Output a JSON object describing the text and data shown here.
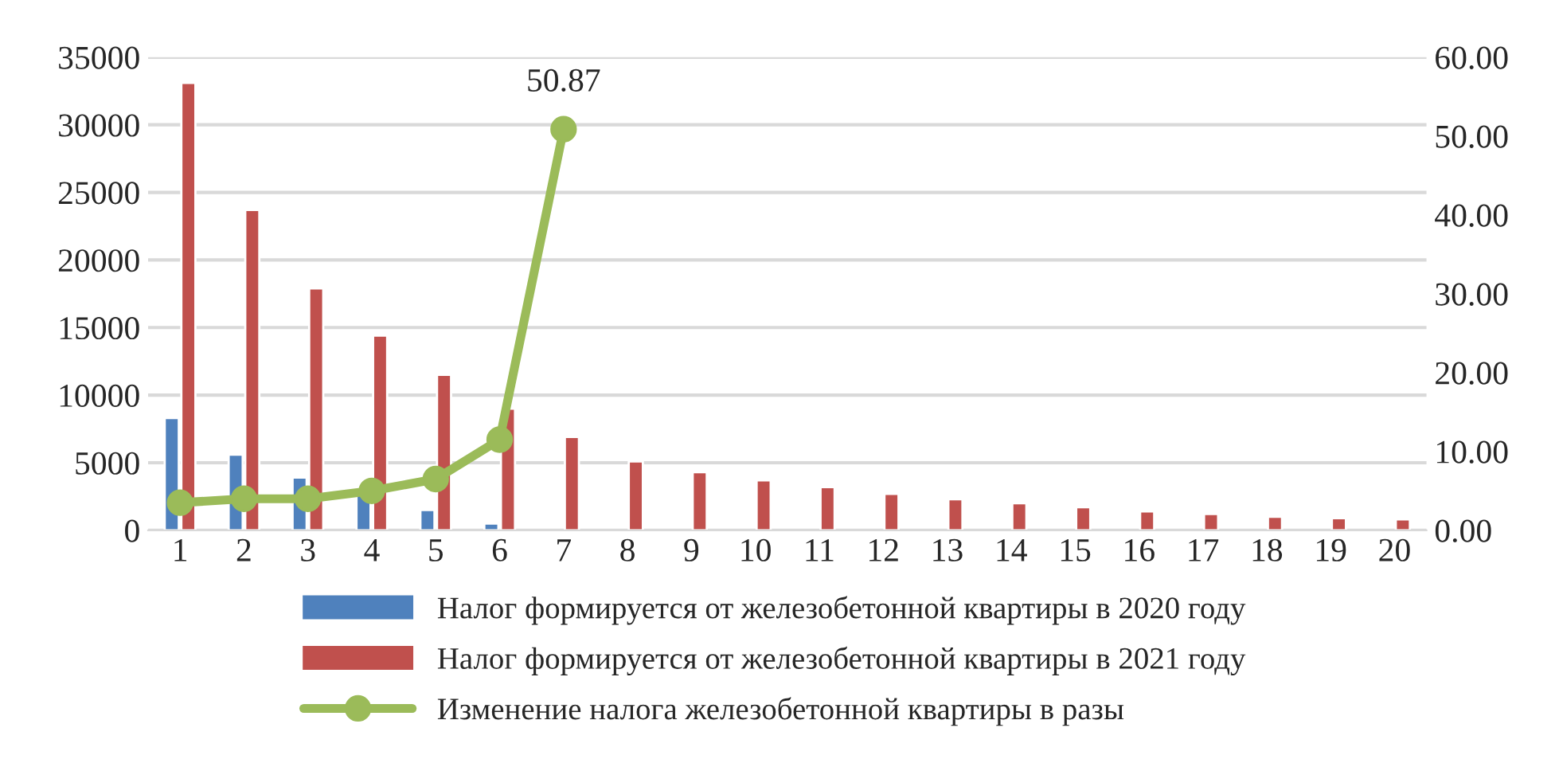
{
  "chart_data": {
    "type": "bar",
    "categories": [
      "1",
      "2",
      "3",
      "4",
      "5",
      "6",
      "7",
      "8",
      "9",
      "10",
      "11",
      "12",
      "13",
      "14",
      "15",
      "16",
      "17",
      "18",
      "19",
      "20"
    ],
    "series": [
      {
        "name": "Налог формируется от железобетонной квартиры в 2020 году",
        "color": "#4f81bd",
        "values": [
          8300,
          5600,
          3900,
          2800,
          1500,
          500,
          null,
          null,
          null,
          null,
          null,
          null,
          null,
          null,
          null,
          null,
          null,
          null,
          null,
          null
        ]
      },
      {
        "name": "Налог формируется от железобетонной квартиры в 2021 году",
        "color": "#c0504d",
        "values": [
          33100,
          23700,
          17900,
          14400,
          11500,
          9000,
          6900,
          5100,
          4300,
          3700,
          3200,
          2700,
          2300,
          2000,
          1700,
          1400,
          1200,
          1000,
          900,
          800
        ]
      },
      {
        "name": "Изменение налога железобетонной квартиры в разы",
        "color": "#9bbb59",
        "type": "line",
        "axis": "y2",
        "marker": "circle",
        "values": [
          3.5,
          4,
          4,
          5,
          6.5,
          11.5,
          50.87,
          null,
          null,
          null,
          null,
          null,
          null,
          null,
          null,
          null,
          null,
          null,
          null,
          null
        ],
        "value_labels": [
          null,
          null,
          null,
          null,
          null,
          null,
          "50.87",
          null,
          null,
          null,
          null,
          null,
          null,
          null,
          null,
          null,
          null,
          null,
          null,
          null
        ]
      }
    ],
    "ylim": [
      0,
      35000
    ],
    "yticks": [
      0,
      5000,
      10000,
      15000,
      20000,
      25000,
      30000,
      35000
    ],
    "y2lim": [
      0,
      60
    ],
    "y2ticks": [
      {
        "value": 0,
        "label": "0.00"
      },
      {
        "value": 10,
        "label": "10.00"
      },
      {
        "value": 20,
        "label": "20.00"
      },
      {
        "value": 30,
        "label": "30.00"
      },
      {
        "value": 40,
        "label": "40.00"
      },
      {
        "value": 50,
        "label": "50.00"
      },
      {
        "value": 60,
        "label": "60.00"
      }
    ],
    "grid": "y",
    "legend": "bottom"
  }
}
